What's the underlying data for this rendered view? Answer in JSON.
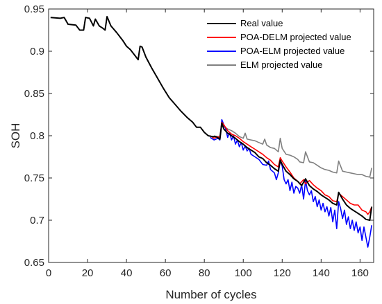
{
  "chart_data": {
    "type": "line",
    "xlabel": "Number of cycles",
    "ylabel": "SOH",
    "xlim": [
      0,
      167
    ],
    "ylim": [
      0.65,
      0.95
    ],
    "xticks": [
      0,
      20,
      40,
      60,
      80,
      100,
      120,
      140,
      160
    ],
    "yticks": [
      0.65,
      0.7,
      0.75,
      0.8,
      0.85,
      0.9,
      0.95
    ],
    "xtick_labels": [
      "0",
      "20",
      "40",
      "60",
      "80",
      "100",
      "120",
      "140",
      "160"
    ],
    "ytick_labels": [
      "0.65",
      "0.7",
      "0.75",
      "0.8",
      "0.85",
      "0.9",
      "0.95"
    ],
    "grid": false,
    "legend_position": "top-right",
    "series": [
      {
        "name": "Real value",
        "color": "#000000",
        "points": [
          [
            1,
            0.94
          ],
          [
            6,
            0.939
          ],
          [
            8,
            0.94
          ],
          [
            10,
            0.932
          ],
          [
            14,
            0.931
          ],
          [
            16,
            0.925
          ],
          [
            18,
            0.925
          ],
          [
            19,
            0.94
          ],
          [
            21,
            0.939
          ],
          [
            23,
            0.93
          ],
          [
            24,
            0.938
          ],
          [
            26,
            0.93
          ],
          [
            28,
            0.927
          ],
          [
            29,
            0.925
          ],
          [
            30,
            0.941
          ],
          [
            32,
            0.93
          ],
          [
            35,
            0.922
          ],
          [
            38,
            0.913
          ],
          [
            40,
            0.906
          ],
          [
            42,
            0.902
          ],
          [
            44,
            0.896
          ],
          [
            46,
            0.89
          ],
          [
            47,
            0.906
          ],
          [
            48,
            0.905
          ],
          [
            50,
            0.893
          ],
          [
            53,
            0.88
          ],
          [
            56,
            0.868
          ],
          [
            59,
            0.856
          ],
          [
            62,
            0.845
          ],
          [
            65,
            0.837
          ],
          [
            68,
            0.829
          ],
          [
            71,
            0.822
          ],
          [
            74,
            0.816
          ],
          [
            76,
            0.81
          ],
          [
            78,
            0.81
          ],
          [
            80,
            0.804
          ],
          [
            82,
            0.8
          ],
          [
            84,
            0.799
          ],
          [
            86,
            0.799
          ],
          [
            88,
            0.796
          ],
          [
            89,
            0.815
          ],
          [
            90,
            0.808
          ],
          [
            92,
            0.803
          ],
          [
            94,
            0.8
          ],
          [
            96,
            0.797
          ],
          [
            98,
            0.793
          ],
          [
            100,
            0.79
          ],
          [
            102,
            0.786
          ],
          [
            104,
            0.783
          ],
          [
            106,
            0.78
          ],
          [
            108,
            0.775
          ],
          [
            110,
            0.773
          ],
          [
            112,
            0.768
          ],
          [
            114,
            0.765
          ],
          [
            116,
            0.761
          ],
          [
            118,
            0.758
          ],
          [
            119,
            0.771
          ],
          [
            120,
            0.766
          ],
          [
            122,
            0.758
          ],
          [
            124,
            0.754
          ],
          [
            126,
            0.749
          ],
          [
            128,
            0.746
          ],
          [
            130,
            0.741
          ],
          [
            132,
            0.749
          ],
          [
            134,
            0.741
          ],
          [
            136,
            0.737
          ],
          [
            138,
            0.734
          ],
          [
            140,
            0.73
          ],
          [
            142,
            0.727
          ],
          [
            144,
            0.724
          ],
          [
            146,
            0.72
          ],
          [
            148,
            0.718
          ],
          [
            149,
            0.733
          ],
          [
            151,
            0.725
          ],
          [
            153,
            0.718
          ],
          [
            155,
            0.714
          ],
          [
            157,
            0.711
          ],
          [
            159,
            0.708
          ],
          [
            161,
            0.705
          ],
          [
            163,
            0.701
          ],
          [
            165,
            0.7
          ],
          [
            166,
            0.716
          ]
        ]
      },
      {
        "name": "POA-DELM projected value",
        "color": "#ff0000",
        "points": [
          [
            83,
            0.8
          ],
          [
            85,
            0.797
          ],
          [
            87,
            0.799
          ],
          [
            88,
            0.797
          ],
          [
            89,
            0.816
          ],
          [
            90,
            0.813
          ],
          [
            92,
            0.806
          ],
          [
            94,
            0.802
          ],
          [
            96,
            0.8
          ],
          [
            98,
            0.797
          ],
          [
            100,
            0.793
          ],
          [
            102,
            0.79
          ],
          [
            104,
            0.787
          ],
          [
            106,
            0.784
          ],
          [
            108,
            0.781
          ],
          [
            110,
            0.778
          ],
          [
            112,
            0.774
          ],
          [
            114,
            0.771
          ],
          [
            116,
            0.766
          ],
          [
            118,
            0.763
          ],
          [
            119,
            0.774
          ],
          [
            120,
            0.77
          ],
          [
            122,
            0.763
          ],
          [
            124,
            0.757
          ],
          [
            126,
            0.75
          ],
          [
            128,
            0.746
          ],
          [
            129,
            0.743
          ],
          [
            131,
            0.748
          ],
          [
            132,
            0.743
          ],
          [
            134,
            0.747
          ],
          [
            136,
            0.742
          ],
          [
            138,
            0.738
          ],
          [
            140,
            0.735
          ],
          [
            142,
            0.73
          ],
          [
            144,
            0.728
          ],
          [
            146,
            0.723
          ],
          [
            148,
            0.722
          ],
          [
            149,
            0.732
          ],
          [
            151,
            0.728
          ],
          [
            153,
            0.724
          ],
          [
            155,
            0.72
          ],
          [
            157,
            0.718
          ],
          [
            159,
            0.718
          ],
          [
            161,
            0.712
          ],
          [
            163,
            0.71
          ],
          [
            164,
            0.707
          ],
          [
            165,
            0.71
          ],
          [
            166,
            0.716
          ]
        ]
      },
      {
        "name": "POA-ELM projected value",
        "color": "#0000ff",
        "points": [
          [
            83,
            0.798
          ],
          [
            85,
            0.795
          ],
          [
            87,
            0.797
          ],
          [
            88,
            0.795
          ],
          [
            89,
            0.819
          ],
          [
            90,
            0.813
          ],
          [
            91,
            0.808
          ],
          [
            92,
            0.798
          ],
          [
            93,
            0.804
          ],
          [
            94,
            0.795
          ],
          [
            95,
            0.8
          ],
          [
            96,
            0.79
          ],
          [
            97,
            0.795
          ],
          [
            98,
            0.787
          ],
          [
            99,
            0.792
          ],
          [
            100,
            0.783
          ],
          [
            101,
            0.788
          ],
          [
            102,
            0.782
          ],
          [
            103,
            0.785
          ],
          [
            104,
            0.778
          ],
          [
            106,
            0.775
          ],
          [
            108,
            0.772
          ],
          [
            110,
            0.766
          ],
          [
            112,
            0.765
          ],
          [
            113,
            0.77
          ],
          [
            114,
            0.76
          ],
          [
            116,
            0.756
          ],
          [
            117,
            0.748
          ],
          [
            118,
            0.756
          ],
          [
            119,
            0.77
          ],
          [
            120,
            0.764
          ],
          [
            121,
            0.748
          ],
          [
            122,
            0.743
          ],
          [
            123,
            0.748
          ],
          [
            124,
            0.735
          ],
          [
            125,
            0.745
          ],
          [
            126,
            0.732
          ],
          [
            127,
            0.74
          ],
          [
            128,
            0.738
          ],
          [
            129,
            0.732
          ],
          [
            130,
            0.742
          ],
          [
            131,
            0.725
          ],
          [
            132,
            0.747
          ],
          [
            133,
            0.735
          ],
          [
            134,
            0.73
          ],
          [
            135,
            0.735
          ],
          [
            136,
            0.722
          ],
          [
            137,
            0.728
          ],
          [
            138,
            0.716
          ],
          [
            139,
            0.724
          ],
          [
            140,
            0.712
          ],
          [
            141,
            0.72
          ],
          [
            142,
            0.71
          ],
          [
            143,
            0.716
          ],
          [
            144,
            0.705
          ],
          [
            145,
            0.715
          ],
          [
            146,
            0.698
          ],
          [
            147,
            0.712
          ],
          [
            148,
            0.69
          ],
          [
            149,
            0.722
          ],
          [
            150,
            0.714
          ],
          [
            151,
            0.702
          ],
          [
            152,
            0.712
          ],
          [
            153,
            0.695
          ],
          [
            154,
            0.704
          ],
          [
            155,
            0.69
          ],
          [
            156,
            0.7
          ],
          [
            157,
            0.688
          ],
          [
            158,
            0.698
          ],
          [
            159,
            0.685
          ],
          [
            160,
            0.692
          ],
          [
            161,
            0.676
          ],
          [
            162,
            0.692
          ],
          [
            163,
            0.68
          ],
          [
            164,
            0.668
          ],
          [
            165,
            0.68
          ],
          [
            166,
            0.694
          ]
        ]
      },
      {
        "name": "ELM projected value",
        "color": "#808080",
        "points": [
          [
            85,
            0.8
          ],
          [
            87,
            0.798
          ],
          [
            88,
            0.8
          ],
          [
            89,
            0.814
          ],
          [
            90,
            0.811
          ],
          [
            92,
            0.808
          ],
          [
            94,
            0.806
          ],
          [
            96,
            0.803
          ],
          [
            98,
            0.799
          ],
          [
            100,
            0.797
          ],
          [
            101,
            0.803
          ],
          [
            102,
            0.796
          ],
          [
            104,
            0.795
          ],
          [
            106,
            0.794
          ],
          [
            108,
            0.792
          ],
          [
            110,
            0.79
          ],
          [
            111,
            0.796
          ],
          [
            112,
            0.789
          ],
          [
            114,
            0.786
          ],
          [
            116,
            0.785
          ],
          [
            118,
            0.781
          ],
          [
            119,
            0.797
          ],
          [
            120,
            0.785
          ],
          [
            122,
            0.778
          ],
          [
            124,
            0.777
          ],
          [
            126,
            0.775
          ],
          [
            128,
            0.772
          ],
          [
            129,
            0.769
          ],
          [
            131,
            0.768
          ],
          [
            132,
            0.781
          ],
          [
            134,
            0.769
          ],
          [
            136,
            0.768
          ],
          [
            138,
            0.765
          ],
          [
            140,
            0.762
          ],
          [
            142,
            0.76
          ],
          [
            144,
            0.759
          ],
          [
            146,
            0.757
          ],
          [
            148,
            0.756
          ],
          [
            149,
            0.77
          ],
          [
            151,
            0.758
          ],
          [
            153,
            0.757
          ],
          [
            155,
            0.756
          ],
          [
            157,
            0.755
          ],
          [
            159,
            0.754
          ],
          [
            161,
            0.754
          ],
          [
            163,
            0.752
          ],
          [
            165,
            0.751
          ],
          [
            166,
            0.762
          ]
        ]
      }
    ]
  }
}
